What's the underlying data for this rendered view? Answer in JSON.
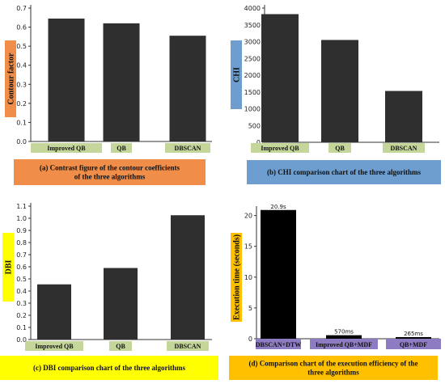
{
  "chart_data": [
    {
      "id": "a",
      "type": "bar",
      "categories": [
        "Improved QB",
        "QB",
        "DBSCAN"
      ],
      "values": [
        0.645,
        0.62,
        0.555
      ],
      "ylabel": "Contour factor",
      "ylim": [
        0,
        0.7
      ],
      "yticks": [
        0,
        0.1,
        0.2,
        0.3,
        0.4,
        0.5,
        0.6,
        0.7
      ],
      "caption": [
        "(a) Contrast figure of the contour coefficients",
        "of the three algorithms"
      ],
      "caption_color": "#ef8d49",
      "ylabel_color": "#ef8d49",
      "category_color": "#c5d69b",
      "bar_color": "#2f2f2f"
    },
    {
      "id": "b",
      "type": "bar",
      "categories": [
        "Improved QB",
        "QB",
        "DBSCAN"
      ],
      "values": [
        3820,
        3050,
        1530
      ],
      "ylabel": "CHI",
      "ylim": [
        0,
        4000
      ],
      "yticks": [
        0,
        500,
        1000,
        1500,
        2000,
        2500,
        3000,
        3500,
        4000
      ],
      "caption": [
        "(b) CHI comparison chart of the three algorithms"
      ],
      "caption_color": "#6d9ecf",
      "ylabel_color": "#6d9ecf",
      "category_color": "#c5d69b",
      "bar_color": "#2f2f2f"
    },
    {
      "id": "c",
      "type": "bar",
      "categories": [
        "Improved QB",
        "QB",
        "DBSCAN"
      ],
      "values": [
        0.455,
        0.59,
        1.025
      ],
      "ylabel": "DBI",
      "ylim": [
        0,
        1.1
      ],
      "yticks": [
        0,
        0.1,
        0.2,
        0.3,
        0.4,
        0.5,
        0.6,
        0.7,
        0.8,
        0.9,
        1.0,
        1.1
      ],
      "caption": [
        "(c) DBI comparison chart of the three algorithms"
      ],
      "caption_color": "#ffff00",
      "ylabel_color": "#ffff00",
      "category_color": "#c5d69b",
      "bar_color": "#2f2f2f"
    },
    {
      "id": "d",
      "type": "bar",
      "categories": [
        "DBSCAN+DTW",
        "Improved QB+MDF",
        "QB+MDF"
      ],
      "values": [
        20.9,
        0.57,
        0.265
      ],
      "data_labels": [
        "20.9s",
        "570ms",
        "265ms"
      ],
      "ylabel": "Execution time (seconds)",
      "ylim": [
        0,
        21
      ],
      "yticks": [
        0,
        5,
        10,
        15,
        20
      ],
      "caption": [
        "(d) Comparison chart of the execution efficiency of the",
        "three algorithms"
      ],
      "caption_color": "#ffc000",
      "ylabel_color": "#ffc000",
      "category_color": "#8e7cc3",
      "category_text_color": "#ffffff",
      "bar_color": "#000000"
    }
  ]
}
